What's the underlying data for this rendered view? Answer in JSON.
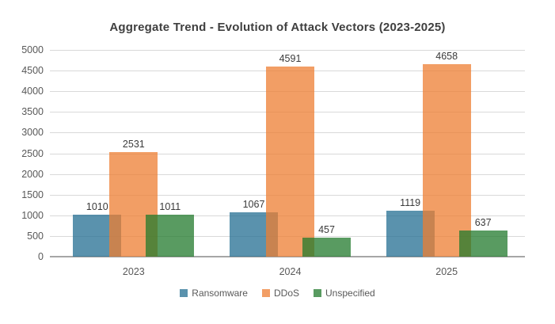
{
  "chart_data": {
    "type": "bar",
    "title": "Aggregate Trend - Evolution of Attack Vectors (2023-2025)",
    "categories": [
      "2023",
      "2024",
      "2025"
    ],
    "series": [
      {
        "name": "Ransomware",
        "color": "#236E91",
        "values": [
          1010,
          1067,
          1119
        ]
      },
      {
        "name": "DDoS",
        "color": "#ED7D31",
        "values": [
          2531,
          4591,
          4658
        ]
      },
      {
        "name": "Unspecified",
        "color": "#227A2C",
        "values": [
          1011,
          457,
          637
        ]
      }
    ],
    "bar_opacity": 0.75,
    "xlabel": "",
    "ylabel": "",
    "ylim": [
      0,
      5000
    ],
    "ytick_step": 500,
    "ytick_labels": [
      "0",
      "500",
      "1000",
      "1500",
      "2000",
      "2500",
      "3000",
      "3500",
      "4000",
      "4500",
      "5000"
    ],
    "grid": true,
    "legend_position": "bottom",
    "data_labels": true
  },
  "colors": {
    "background": "#FFFFFF",
    "gridline": "#D9D9D9",
    "axis_line": "#A6A6A6",
    "tick_text": "#595959",
    "category_text": "#595959",
    "legend_text": "#595959",
    "data_label_text": "#3A3A3A",
    "title_text": "#3F3F3F"
  }
}
